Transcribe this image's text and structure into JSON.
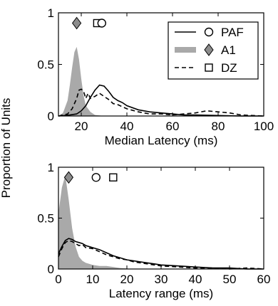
{
  "colors": {
    "a1_fill": "#a9a9a9",
    "marker_gray": "#8c8c8c",
    "line": "#000000"
  },
  "shared_ylabel": "Proportion of Units",
  "legend": {
    "entries": [
      {
        "label": "PAF",
        "line": "solid",
        "marker": "circle"
      },
      {
        "label": "A1",
        "line": "gray-fill",
        "marker": "diamond"
      },
      {
        "label": "DZ",
        "line": "dashed",
        "marker": "square"
      }
    ],
    "placement": "top-right of upper panel"
  },
  "chart_data": [
    {
      "type": "area",
      "xlabel": "Median Latency (ms)",
      "ylabel": "Proportion of Units",
      "xlim": [
        10,
        100
      ],
      "ylim": [
        0,
        1
      ],
      "xticks": [
        "20",
        "40",
        "60",
        "80",
        "100"
      ],
      "yticks": [
        "0",
        "0.5",
        "1"
      ],
      "series": [
        {
          "name": "A1",
          "style": "gray-fill",
          "x": [
            10,
            12,
            14,
            15,
            16,
            17,
            18,
            19,
            20,
            21,
            22,
            24,
            26,
            28,
            30,
            32
          ],
          "y": [
            0,
            0.03,
            0.15,
            0.3,
            0.47,
            0.62,
            0.67,
            0.55,
            0.36,
            0.2,
            0.1,
            0.04,
            0.01,
            0.005,
            0.0,
            0.0
          ]
        },
        {
          "name": "DZ",
          "style": "dashed",
          "x": [
            10,
            14,
            16,
            18,
            19,
            20,
            21,
            22,
            23,
            24,
            26,
            28,
            30,
            32,
            34,
            36,
            38,
            40,
            45,
            50,
            55,
            60,
            65,
            70,
            75,
            80,
            85,
            90,
            95,
            100
          ],
          "y": [
            0,
            0.02,
            0.07,
            0.17,
            0.25,
            0.26,
            0.24,
            0.17,
            0.22,
            0.17,
            0.19,
            0.22,
            0.19,
            0.16,
            0.12,
            0.11,
            0.09,
            0.07,
            0.04,
            0.02,
            0.02,
            0.01,
            0.02,
            0.03,
            0.05,
            0.04,
            0.03,
            0.01,
            0.005,
            0.0
          ]
        },
        {
          "name": "PAF",
          "style": "solid",
          "x": [
            10,
            15,
            18,
            20,
            22,
            24,
            26,
            28,
            30,
            32,
            34,
            36,
            38,
            40,
            45,
            50,
            55,
            60,
            65,
            70,
            80,
            90,
            100
          ],
          "y": [
            0,
            0.01,
            0.02,
            0.05,
            0.1,
            0.18,
            0.25,
            0.3,
            0.29,
            0.24,
            0.18,
            0.15,
            0.13,
            0.1,
            0.06,
            0.04,
            0.03,
            0.02,
            0.01,
            0.01,
            0.005,
            0.0,
            0.0
          ]
        }
      ],
      "markers": [
        {
          "name": "A1",
          "shape": "diamond",
          "x": 18,
          "y": 0.9
        },
        {
          "name": "DZ",
          "shape": "square",
          "x": 27,
          "y": 0.9
        },
        {
          "name": "PAF",
          "shape": "circle",
          "x": 29,
          "y": 0.9
        }
      ]
    },
    {
      "type": "area",
      "xlabel": "Latency range (ms)",
      "ylabel": "Proportion of Units",
      "xlim": [
        0,
        60
      ],
      "ylim": [
        0,
        1
      ],
      "xticks": [
        "0",
        "10",
        "20",
        "30",
        "40",
        "50",
        "60"
      ],
      "yticks": [
        "0",
        "0.5",
        "1"
      ],
      "series": [
        {
          "name": "A1",
          "style": "gray-fill",
          "x": [
            0,
            1,
            2,
            3,
            4,
            5,
            6,
            7,
            8,
            10,
            12,
            14,
            16,
            18,
            20,
            22,
            24
          ],
          "y": [
            0.55,
            0.8,
            0.92,
            0.68,
            0.4,
            0.22,
            0.12,
            0.08,
            0.06,
            0.04,
            0.03,
            0.03,
            0.02,
            0.01,
            0.005,
            0.0,
            0.0
          ]
        },
        {
          "name": "DZ",
          "style": "dashed",
          "x": [
            0,
            1,
            2,
            3,
            4,
            5,
            6,
            7,
            8,
            10,
            12,
            14,
            16,
            18,
            20,
            22,
            24,
            26,
            28,
            30,
            35,
            40,
            45,
            50,
            55,
            60
          ],
          "y": [
            0.12,
            0.2,
            0.26,
            0.28,
            0.27,
            0.25,
            0.23,
            0.24,
            0.21,
            0.2,
            0.17,
            0.14,
            0.12,
            0.1,
            0.09,
            0.07,
            0.06,
            0.05,
            0.04,
            0.03,
            0.02,
            0.01,
            0.01,
            0.0,
            0.01,
            0.0
          ]
        },
        {
          "name": "PAF",
          "style": "solid",
          "x": [
            0,
            1,
            2,
            3,
            4,
            5,
            6,
            7,
            8,
            10,
            12,
            14,
            16,
            18,
            20,
            22,
            24,
            26,
            28,
            30,
            35,
            40,
            45,
            50,
            55,
            60
          ],
          "y": [
            0.15,
            0.22,
            0.28,
            0.3,
            0.29,
            0.27,
            0.26,
            0.25,
            0.23,
            0.21,
            0.19,
            0.16,
            0.13,
            0.11,
            0.09,
            0.08,
            0.07,
            0.06,
            0.05,
            0.04,
            0.03,
            0.02,
            0.01,
            0.01,
            0.0,
            0.0
          ]
        }
      ],
      "markers": [
        {
          "name": "A1",
          "shape": "diamond",
          "x": 3,
          "y": 0.9
        },
        {
          "name": "PAF",
          "shape": "circle",
          "x": 11,
          "y": 0.9
        },
        {
          "name": "DZ",
          "shape": "square",
          "x": 16,
          "y": 0.9
        }
      ]
    }
  ]
}
